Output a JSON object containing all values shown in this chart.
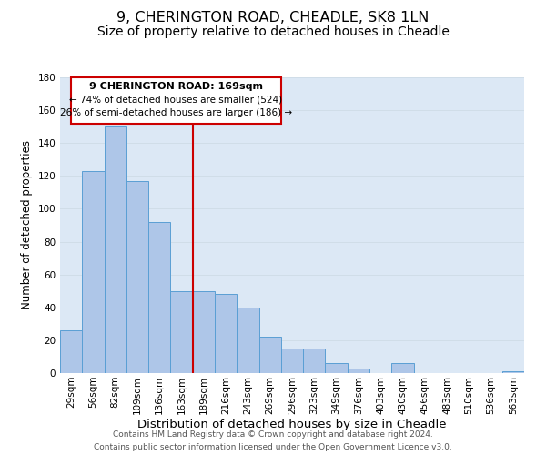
{
  "title": "9, CHERINGTON ROAD, CHEADLE, SK8 1LN",
  "subtitle": "Size of property relative to detached houses in Cheadle",
  "xlabel": "Distribution of detached houses by size in Cheadle",
  "ylabel": "Number of detached properties",
  "bar_labels": [
    "29sqm",
    "56sqm",
    "82sqm",
    "109sqm",
    "136sqm",
    "163sqm",
    "189sqm",
    "216sqm",
    "243sqm",
    "269sqm",
    "296sqm",
    "323sqm",
    "349sqm",
    "376sqm",
    "403sqm",
    "430sqm",
    "456sqm",
    "483sqm",
    "510sqm",
    "536sqm",
    "563sqm"
  ],
  "bar_values": [
    26,
    123,
    150,
    117,
    92,
    50,
    50,
    48,
    40,
    22,
    15,
    15,
    6,
    3,
    0,
    6,
    0,
    0,
    0,
    0,
    1
  ],
  "bar_color": "#aec6e8",
  "bar_edge_color": "#5a9fd4",
  "grid_color": "#d0dde8",
  "background_color": "#dce8f5",
  "vline_color": "#cc0000",
  "annotation_title": "9 CHERINGTON ROAD: 169sqm",
  "annotation_line1": "← 74% of detached houses are smaller (524)",
  "annotation_line2": "26% of semi-detached houses are larger (186) →",
  "annotation_box_color": "#ffffff",
  "annotation_box_edge": "#cc0000",
  "footer1": "Contains HM Land Registry data © Crown copyright and database right 2024.",
  "footer2": "Contains public sector information licensed under the Open Government Licence v3.0.",
  "ylim": [
    0,
    180
  ],
  "yticks": [
    0,
    20,
    40,
    60,
    80,
    100,
    120,
    140,
    160,
    180
  ],
  "title_fontsize": 11.5,
  "subtitle_fontsize": 10,
  "xlabel_fontsize": 9.5,
  "ylabel_fontsize": 8.5,
  "tick_fontsize": 7.5,
  "footer_fontsize": 6.5
}
